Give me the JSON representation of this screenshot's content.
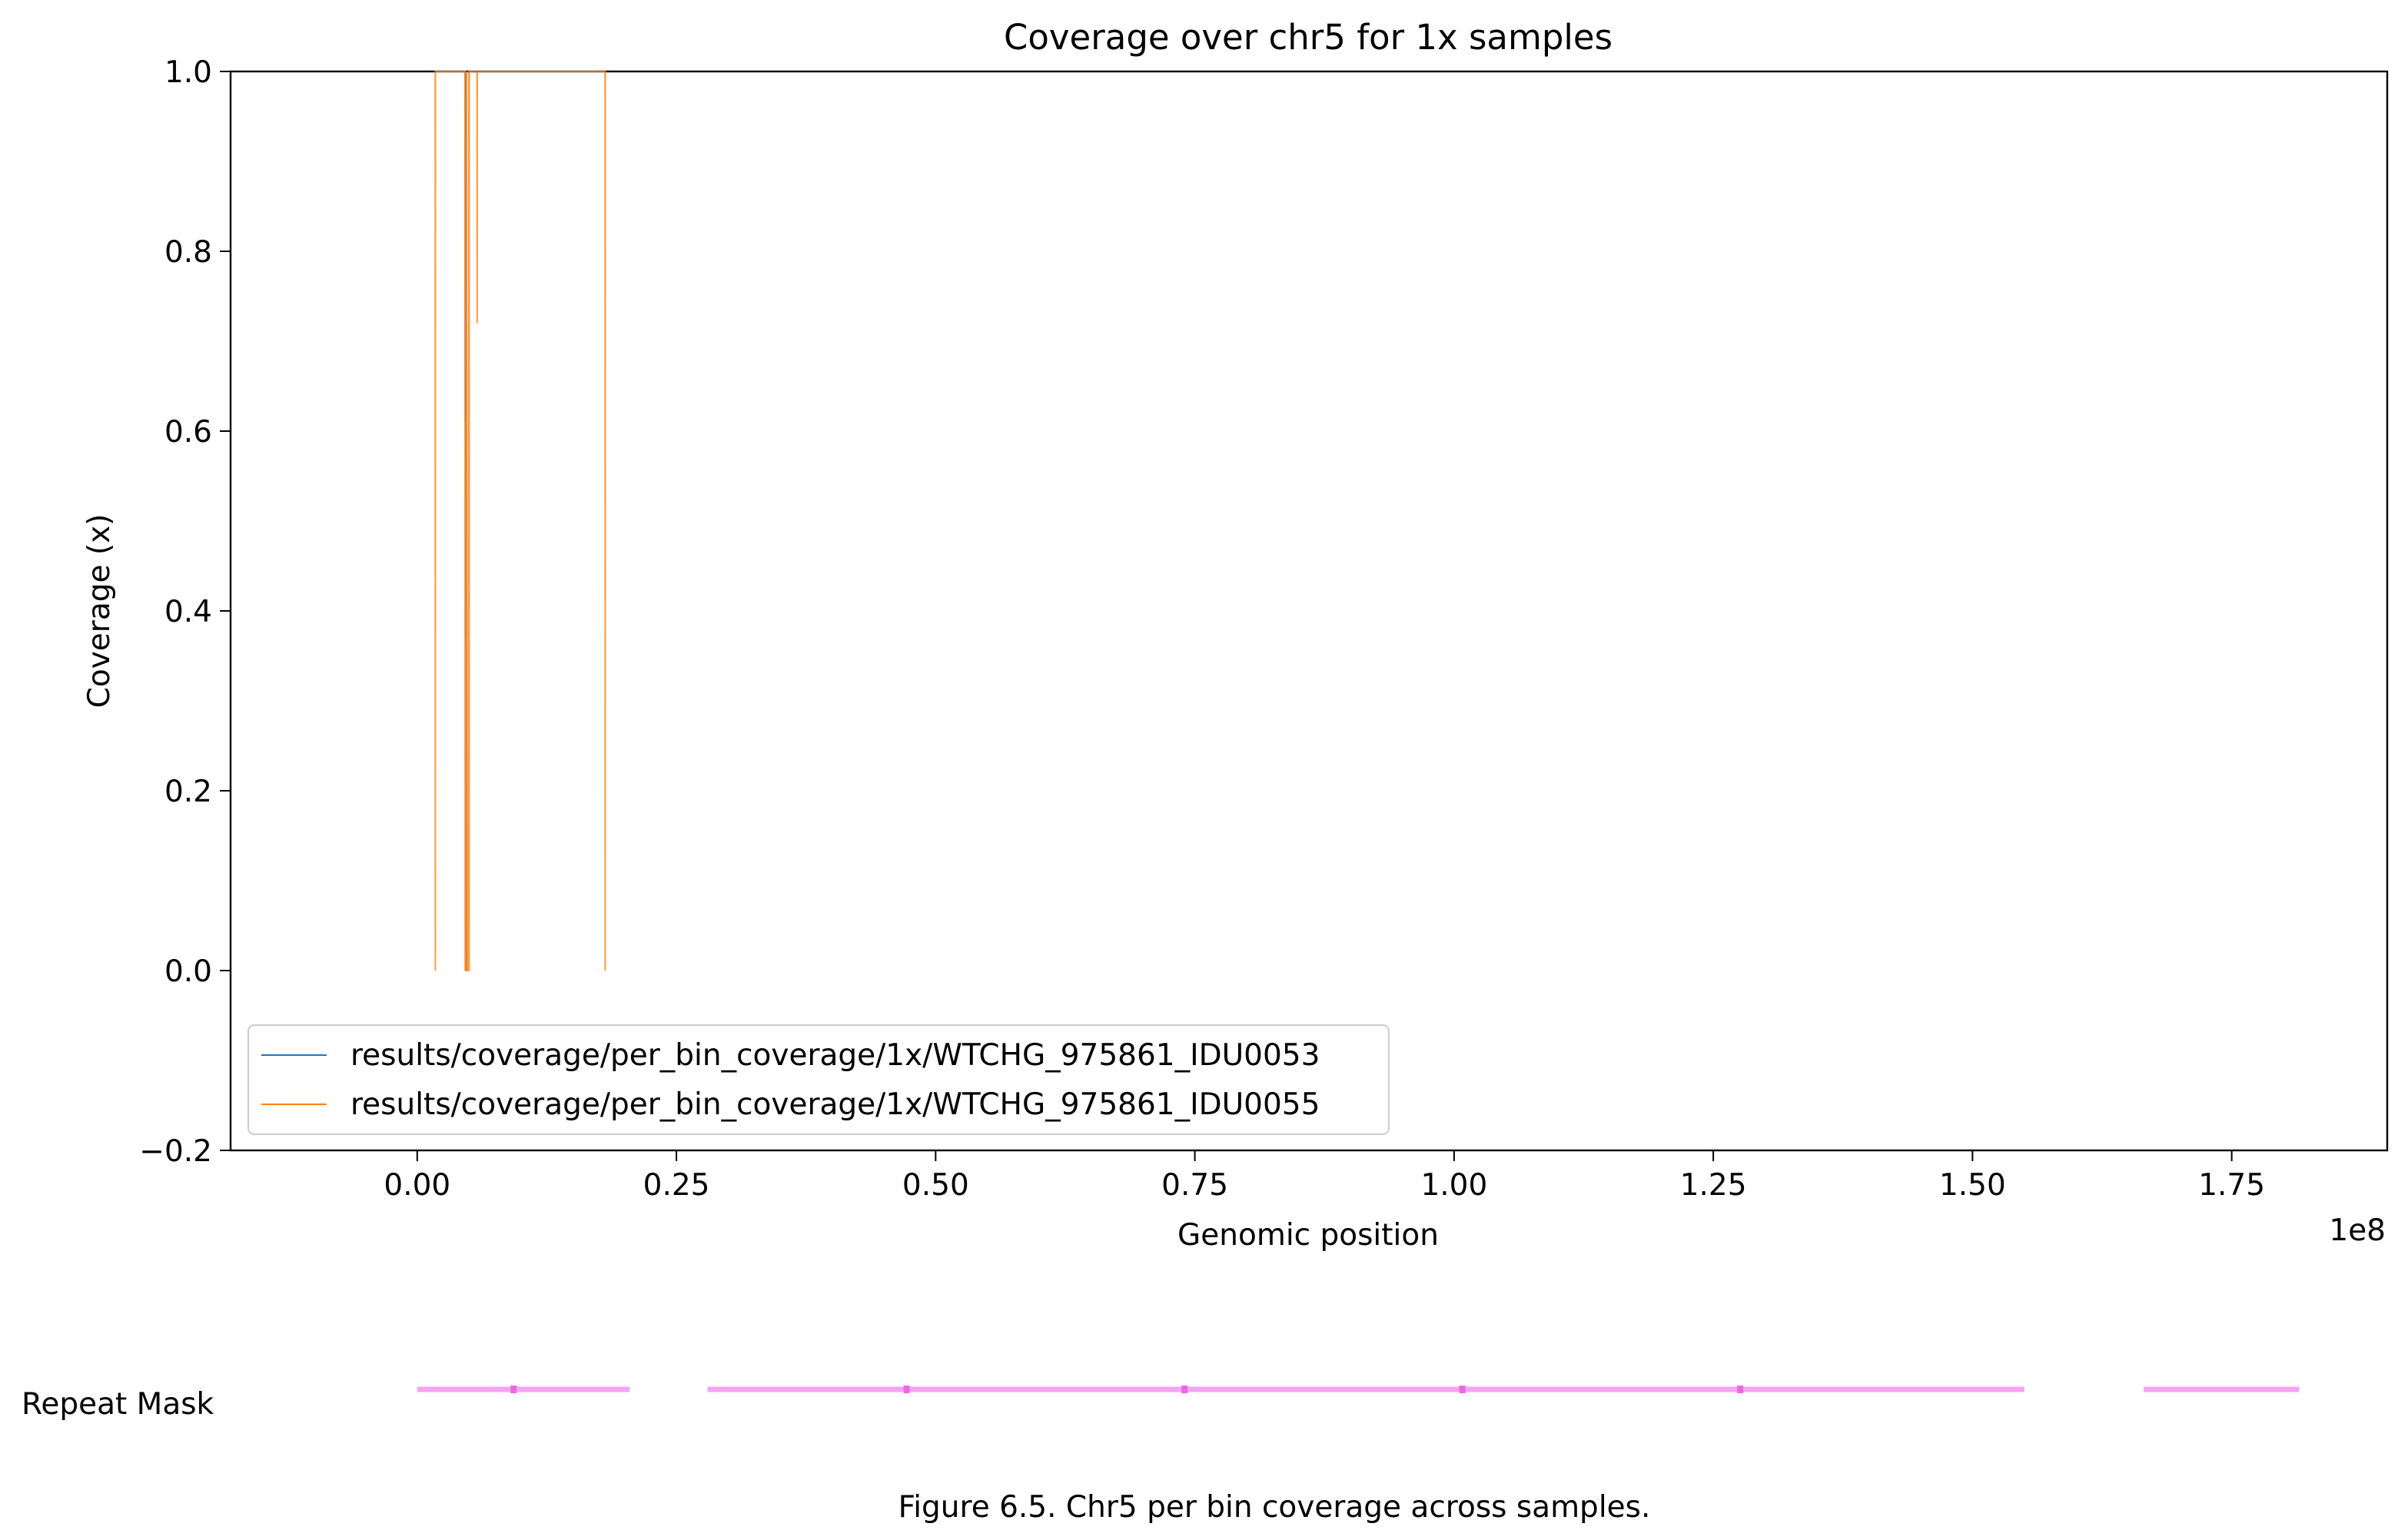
{
  "chart_data": {
    "type": "line",
    "title": "Coverage over chr5 for 1x samples",
    "xlabel": "Genomic position",
    "ylabel": "Coverage (x)",
    "x_offset_label": "1e8",
    "xlim": [
      -1.8,
      19.0
    ],
    "ylim": [
      -0.2,
      1.0
    ],
    "x_unit_note": "x values are in units of 1e7 base pairs",
    "xticks": [
      0.0,
      0.25,
      0.5,
      0.75,
      1.0,
      1.25,
      1.5,
      1.75
    ],
    "xtick_labels": [
      "0.00",
      "0.25",
      "0.50",
      "0.75",
      "1.00",
      "1.25",
      "1.50",
      "1.75"
    ],
    "yticks": [
      -0.2,
      0.0,
      0.2,
      0.4,
      0.6,
      0.8,
      1.0
    ],
    "ytick_labels": [
      "−0.2",
      "0.0",
      "0.2",
      "0.4",
      "0.6",
      "0.8",
      "1.0"
    ],
    "legend_position": "lower-left",
    "series": [
      {
        "name": "results/coverage/per_bin_coverage/1x/WTCHG_975861_IDU0053",
        "color": "#1f77b4",
        "x": [
          4.64,
          4.65,
          4.66,
          4.67,
          4.68,
          4.69,
          4.7,
          4.71,
          4.72,
          4.73,
          4.74,
          4.75
        ],
        "y": [
          1.0,
          0.76,
          0.61,
          1.0,
          0.81,
          1.0,
          0.85,
          0.37,
          0.47,
          1.0,
          0.0,
          0.0
        ]
      },
      {
        "name": "results/coverage/per_bin_coverage/1x/WTCHG_975861_IDU0055",
        "color": "#ff7f0e",
        "x": [
          1.74,
          1.75,
          1.76,
          4.61,
          4.62,
          4.63,
          4.64,
          4.65,
          4.66,
          4.67,
          4.68,
          4.69,
          4.7,
          4.71,
          4.72,
          4.73,
          4.74,
          4.75,
          4.8,
          4.9,
          4.96,
          4.97,
          4.98,
          5.0,
          5.01,
          5.02,
          5.77,
          5.78,
          5.79,
          18.12,
          18.13,
          18.14
        ],
        "y": [
          1.0,
          0.0,
          1.0,
          1.0,
          0.0,
          1.0,
          1.0,
          0.7,
          1.0,
          0.9,
          1.0,
          0.95,
          1.0,
          0.0,
          1.0,
          0.0,
          0.0,
          0.0,
          0.0,
          0.0,
          1.0,
          0.0,
          1.0,
          1.0,
          0.0,
          1.0,
          1.0,
          0.72,
          1.0,
          1.0,
          0.0,
          1.0
        ]
      }
    ],
    "repeat_mask": {
      "label": "Repeat Mask",
      "color": "#f5a3f2",
      "segments": [
        [
          0.0,
          2.05
        ],
        [
          2.8,
          15.5
        ],
        [
          16.65,
          18.15
        ]
      ],
      "marks": [
        0.93,
        4.72,
        7.4,
        10.08,
        12.76
      ]
    },
    "caption": "Figure 6.5. Chr5 per bin coverage across samples."
  }
}
